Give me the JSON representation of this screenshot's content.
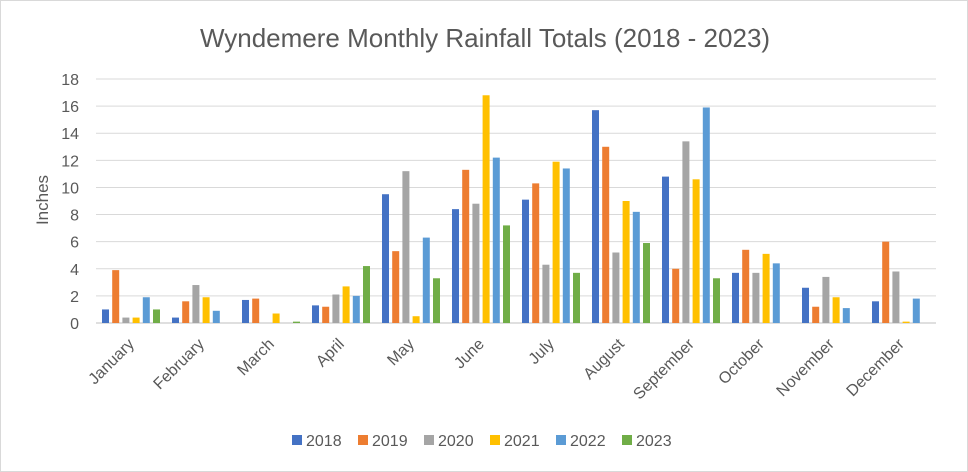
{
  "chart_data": {
    "type": "bar",
    "title": "Wyndemere Monthly Rainfall Totals (2018 - 2023)",
    "xlabel": "",
    "ylabel": "Inches",
    "ylim": [
      0,
      18
    ],
    "yticks": [
      "0",
      "2",
      "4",
      "6",
      "8",
      "10",
      "12",
      "14",
      "16",
      "18"
    ],
    "grid": true,
    "legend_position": "bottom",
    "categories": [
      "January",
      "February",
      "March",
      "April",
      "May",
      "June",
      "July",
      "August",
      "September",
      "October",
      "November",
      "December"
    ],
    "series": [
      {
        "name": "2018",
        "color": "#4472c4",
        "values": [
          1.0,
          0.4,
          1.7,
          1.3,
          9.5,
          8.4,
          9.1,
          15.7,
          10.8,
          3.7,
          2.6,
          1.6
        ]
      },
      {
        "name": "2019",
        "color": "#ed7d31",
        "values": [
          3.9,
          1.6,
          1.8,
          1.2,
          5.3,
          11.3,
          10.3,
          13.0,
          4.0,
          5.4,
          1.2,
          6.0
        ]
      },
      {
        "name": "2020",
        "color": "#a5a5a5",
        "values": [
          0.4,
          2.8,
          0.0,
          2.1,
          11.2,
          8.8,
          4.3,
          5.2,
          13.4,
          3.7,
          3.4,
          3.8
        ]
      },
      {
        "name": "2021",
        "color": "#ffc000",
        "values": [
          0.4,
          1.9,
          0.7,
          2.7,
          0.5,
          16.8,
          11.9,
          9.0,
          10.6,
          5.1,
          1.9,
          0.1
        ]
      },
      {
        "name": "2022",
        "color": "#5b9bd5",
        "values": [
          1.9,
          0.9,
          0.0,
          2.0,
          6.3,
          12.2,
          11.4,
          8.2,
          15.9,
          4.4,
          1.1,
          1.8
        ]
      },
      {
        "name": "2023",
        "color": "#70ad47",
        "values": [
          1.0,
          0.0,
          0.1,
          4.2,
          3.3,
          7.2,
          3.7,
          5.9,
          3.3,
          0.0,
          0.0,
          0.0
        ]
      }
    ]
  }
}
